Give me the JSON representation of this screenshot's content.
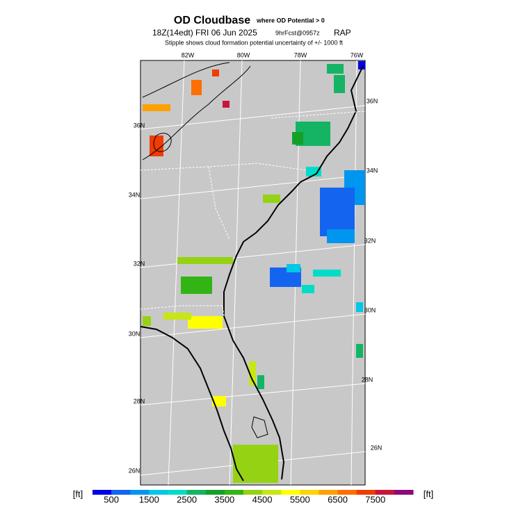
{
  "header": {
    "title": "OD Cloudbase",
    "title_note": "where OD Potential > 0",
    "valid": "18Z(14edt) FRI 06 Jun 2025",
    "forecast": "9hrFcst@0957z",
    "model": "RAP",
    "subtitle": "Stipple shows cloud formation potential uncertainty of +/-  1000 ft"
  },
  "map": {
    "lon_labels": [
      "82W",
      "80W",
      "78W",
      "76W"
    ],
    "lat_labels_left": [
      "36N",
      "34N",
      "32N",
      "30N",
      "28N",
      "26N"
    ],
    "lat_labels_right": [
      "36N",
      "34N",
      "32N",
      "30N",
      "28N",
      "26N"
    ]
  },
  "colorbar": {
    "unit_left": "[ft]",
    "unit_right": "[ft]",
    "colors": [
      "#0000e6",
      "#1464f0",
      "#0096f0",
      "#00c8e6",
      "#00dcc8",
      "#14b464",
      "#14a028",
      "#32b414",
      "#96d214",
      "#c8e614",
      "#ffff00",
      "#ffd200",
      "#ffa000",
      "#ff6e00",
      "#f03c00",
      "#c8143c",
      "#8c0a78"
    ],
    "ticks": [
      500,
      1500,
      2500,
      3500,
      4500,
      5500,
      6500,
      7500
    ]
  }
}
